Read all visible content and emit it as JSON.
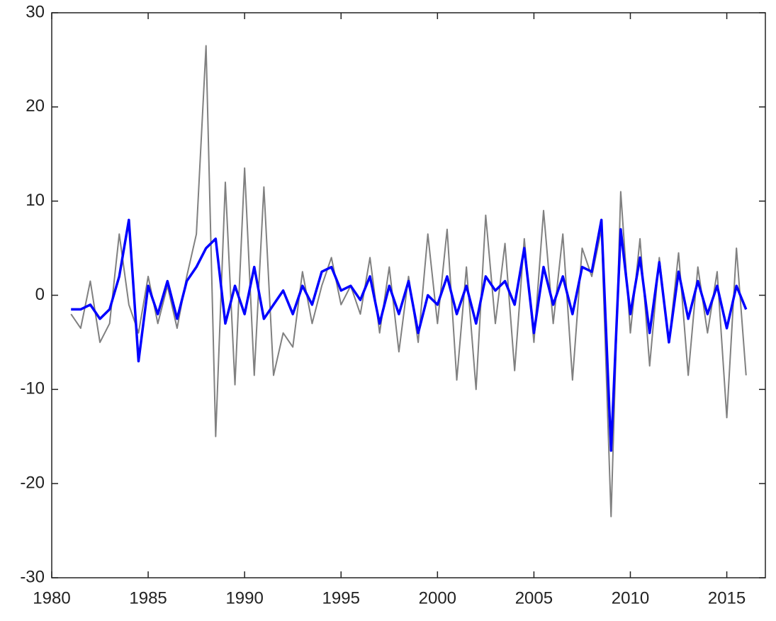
{
  "chart_data": {
    "type": "line",
    "x": [
      1981,
      1981.5,
      1982,
      1982.5,
      1983,
      1983.5,
      1984,
      1984.5,
      1985,
      1985.5,
      1986,
      1986.5,
      1987,
      1987.5,
      1988,
      1988.5,
      1989,
      1989.5,
      1990,
      1990.5,
      1991,
      1991.5,
      1992,
      1992.5,
      1993,
      1993.5,
      1994,
      1994.5,
      1995,
      1995.5,
      1996,
      1996.5,
      1997,
      1997.5,
      1998,
      1998.5,
      1999,
      1999.5,
      2000,
      2000.5,
      2001,
      2001.5,
      2002,
      2002.5,
      2003,
      2003.5,
      2004,
      2004.5,
      2005,
      2005.5,
      2006,
      2006.5,
      2007,
      2007.5,
      2008,
      2008.5,
      2009,
      2009.5,
      2010,
      2010.5,
      2011,
      2011.5,
      2012,
      2012.5,
      2013,
      2013.5,
      2014,
      2014.5,
      2015,
      2015.5,
      2016
    ],
    "series": [
      {
        "color": "#808080",
        "width": 2,
        "values": [
          -2,
          -3.5,
          1.5,
          -5,
          -3,
          6.5,
          -1,
          -4,
          2,
          -3,
          1,
          -3.5,
          2,
          6.5,
          26.5,
          -15,
          12,
          -9.5,
          13.5,
          -8.5,
          11.5,
          -8.5,
          -4,
          -5.5,
          2.5,
          -3,
          1,
          4,
          -1,
          1,
          -2,
          4,
          -4,
          3,
          -6,
          2,
          -5,
          6.5,
          -3,
          7,
          -9,
          3,
          -10,
          8.5,
          -3,
          5.5,
          -8,
          6,
          -5,
          9,
          -3,
          6.5,
          -9,
          5,
          2,
          7,
          -23.5,
          11,
          -4,
          6,
          -7.5,
          4,
          -5,
          4.5,
          -8.5,
          3,
          -4,
          2.5,
          -13,
          5,
          -8.5
        ]
      },
      {
        "color": "#0000ff",
        "width": 3.5,
        "values": [
          -1.5,
          -1.5,
          -1,
          -2.5,
          -1.5,
          2,
          8,
          -7,
          1,
          -2,
          1.5,
          -2.5,
          1.5,
          3,
          5,
          6,
          -3,
          1,
          -2,
          3,
          -2.5,
          -1,
          0.5,
          -2,
          1,
          -1,
          2.5,
          3,
          0.5,
          1,
          -0.5,
          2,
          -3,
          1,
          -2,
          1.5,
          -4,
          0,
          -1,
          2,
          -2,
          1,
          -3,
          2,
          0.5,
          1.5,
          -1,
          5,
          -4,
          3,
          -1,
          2,
          -2,
          3,
          2.5,
          8,
          -16.5,
          7,
          -2,
          4,
          -4,
          3.5,
          -5,
          2.5,
          -2.5,
          1.5,
          -2,
          1,
          -3.5,
          1,
          -1.5
        ]
      }
    ],
    "xlim": [
      1980,
      2017
    ],
    "xticks": [
      1980,
      1985,
      1990,
      1995,
      2000,
      2005,
      2010,
      2015
    ],
    "ylim": [
      -30,
      30
    ],
    "yticks": [
      -30,
      -20,
      -10,
      0,
      10,
      20,
      30
    ],
    "grid": false
  }
}
